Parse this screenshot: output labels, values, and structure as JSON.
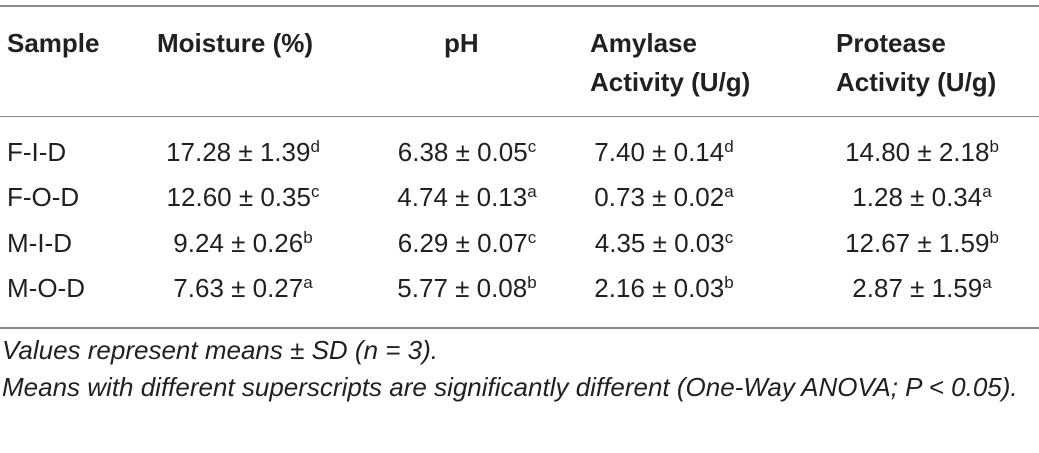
{
  "table": {
    "headers": {
      "sample": "Sample",
      "moisture": "Moisture (%)",
      "ph": "pH",
      "amylase_line1": "Amylase",
      "amylase_line2": "Activity (U/g)",
      "protease_line1": "Protease",
      "protease_line2": "Activity (U/g)"
    },
    "rows": [
      {
        "sample": "F-I-D",
        "moisture": "17.28 ± 1.39",
        "moisture_sup": "d",
        "ph": "6.38 ± 0.05",
        "ph_sup": "c",
        "amylase": "7.40 ± 0.14",
        "amylase_sup": "d",
        "protease": "14.80 ± 2.18",
        "protease_sup": "b"
      },
      {
        "sample": "F-O-D",
        "moisture": "12.60 ± 0.35",
        "moisture_sup": "c",
        "ph": "4.74 ± 0.13",
        "ph_sup": "a",
        "amylase": "0.73 ± 0.02",
        "amylase_sup": "a",
        "protease": "1.28 ± 0.34",
        "protease_sup": "a"
      },
      {
        "sample": "M-I-D",
        "moisture": "9.24 ± 0.26",
        "moisture_sup": "b",
        "ph": "6.29 ± 0.07",
        "ph_sup": "c",
        "amylase": "4.35 ± 0.03",
        "amylase_sup": "c",
        "protease": "12.67 ± 1.59",
        "protease_sup": "b"
      },
      {
        "sample": "M-O-D",
        "moisture": "7.63 ± 0.27",
        "moisture_sup": "a",
        "ph": "5.77 ± 0.08",
        "ph_sup": "b",
        "amylase": "2.16 ± 0.03",
        "amylase_sup": "b",
        "protease": "2.87 ± 1.59",
        "protease_sup": "a"
      }
    ]
  },
  "footnotes": {
    "line1": "Values represent means ± SD (n = 3).",
    "line2": "Means with different superscripts are significantly different (One-Way ANOVA; P < 0.05)."
  }
}
